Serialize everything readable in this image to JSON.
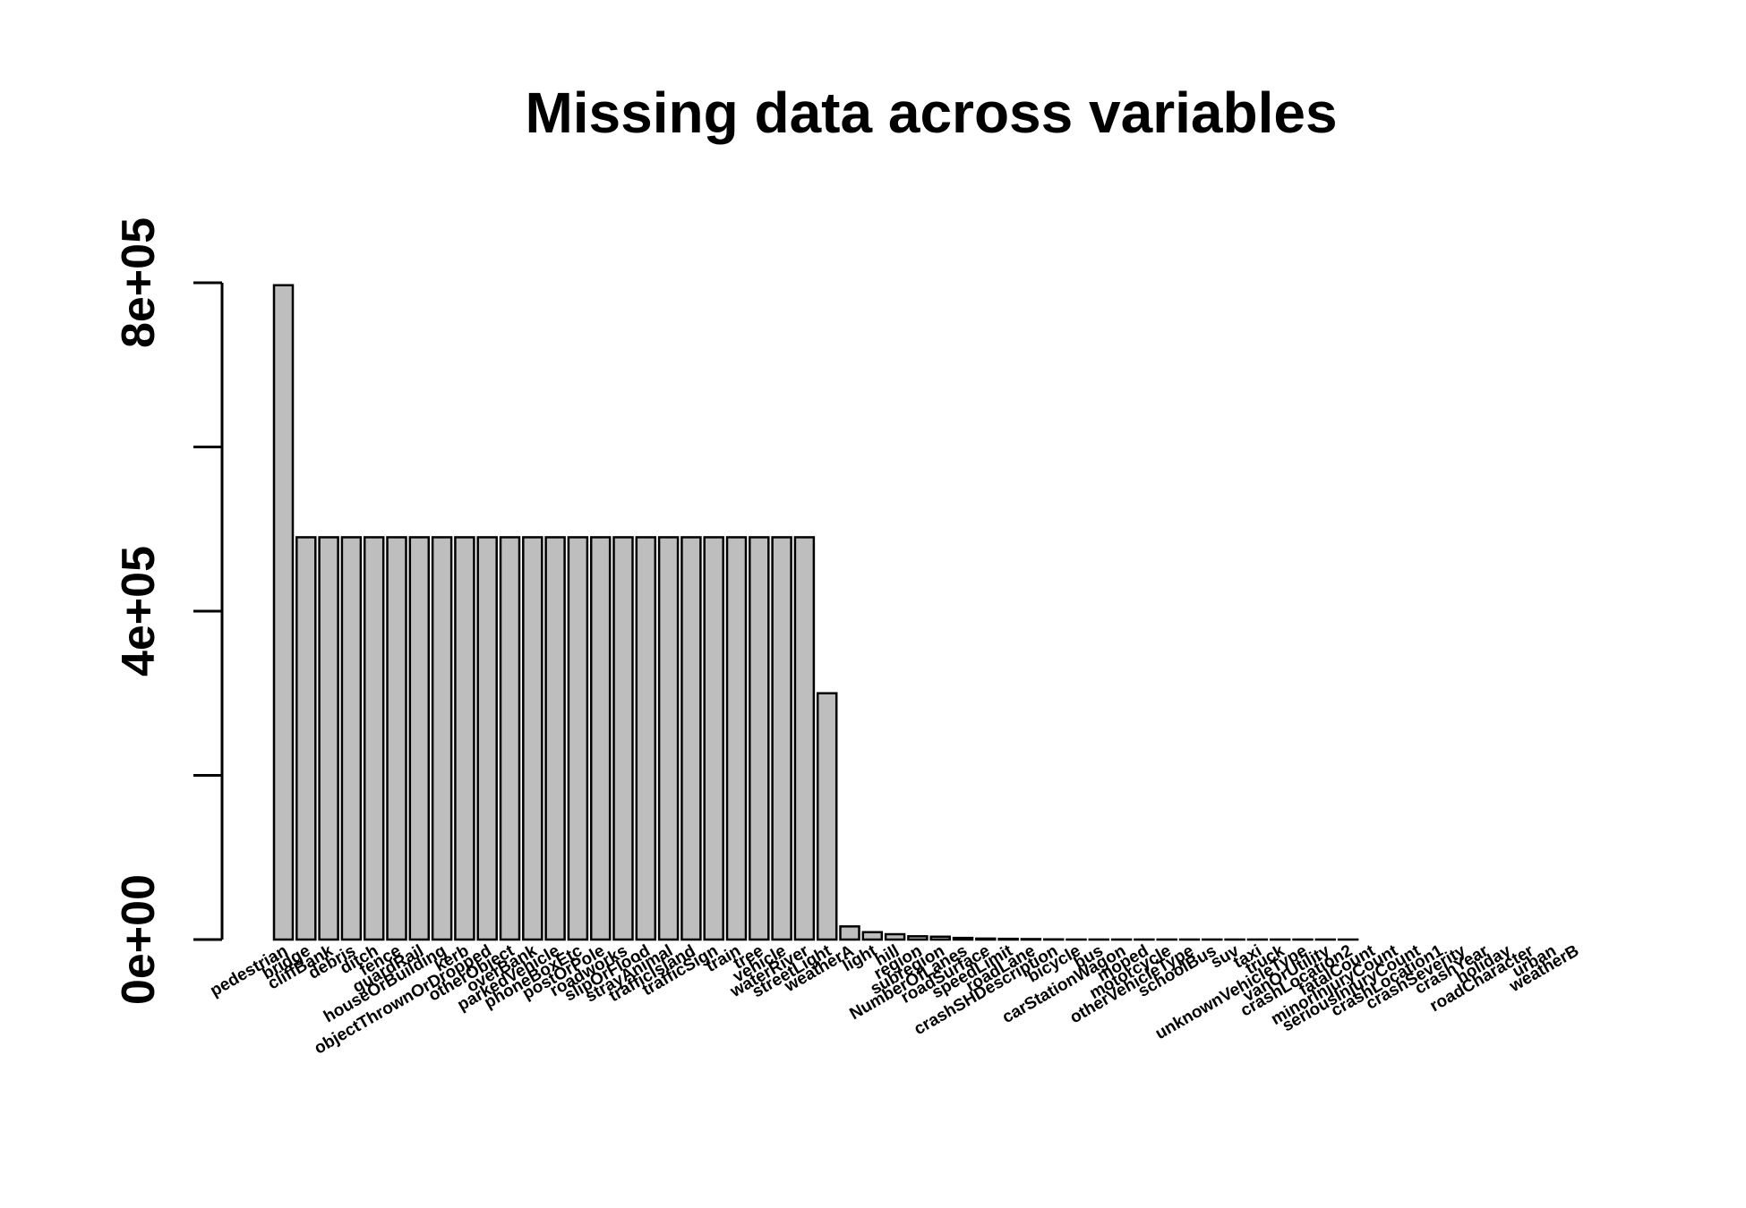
{
  "chart_data": {
    "type": "bar",
    "title": "Missing data across variables",
    "xlabel": "",
    "ylabel": "",
    "ylim": [
      0,
      800000
    ],
    "y_ticks": [
      0,
      200000,
      400000,
      600000,
      800000
    ],
    "y_tick_labels": [
      "0e+00",
      "",
      "4e+05",
      "",
      "8e+05"
    ],
    "grid": false,
    "bar_color": "#bebebe",
    "categories": [
      "pedestrian",
      "bridge",
      "cliffBank",
      "debris",
      "ditch",
      "fence",
      "guardRail",
      "houseOrBuilding",
      "kerb",
      "objectThrownOrDropped",
      "otherObject",
      "overBank",
      "parkedVehicle",
      "phoneBoxEtc",
      "postOrPole",
      "roadworks",
      "slipOrFlood",
      "strayAnimal",
      "trafficIsland",
      "trafficSign",
      "train",
      "tree",
      "vehicle",
      "waterRiver",
      "streetLight",
      "weatherA",
      "light",
      "hill",
      "region",
      "subregion",
      "NumberOfLanes",
      "roadSurface",
      "speedLimit",
      "roadLane",
      "crashSHDescription",
      "bicycle",
      "bus",
      "carStationWagon",
      "moped",
      "motorcycle",
      "otherVehicleType",
      "schoolBus",
      "suv",
      "taxi",
      "truck",
      "unknownVehicleType",
      "vanOrUtility",
      "crashLocation2",
      "fatalCount",
      "minorInjuryCount",
      "seriousInjuryCount",
      "crashLocation1",
      "crashSeverity",
      "crashYear",
      "holiday",
      "roadCharacter",
      "urban",
      "weatherB"
    ],
    "values": [
      797000,
      490000,
      490000,
      490000,
      490000,
      490000,
      490000,
      490000,
      490000,
      490000,
      490000,
      490000,
      490000,
      490000,
      490000,
      490000,
      490000,
      490000,
      490000,
      490000,
      490000,
      490000,
      490000,
      490000,
      300000,
      16000,
      9000,
      6500,
      4000,
      3500,
      2000,
      1200,
      900,
      600,
      250,
      50,
      50,
      50,
      50,
      50,
      50,
      50,
      50,
      50,
      50,
      50,
      50,
      20,
      0,
      0,
      0,
      0,
      0,
      0,
      0,
      0,
      0,
      0
    ]
  }
}
